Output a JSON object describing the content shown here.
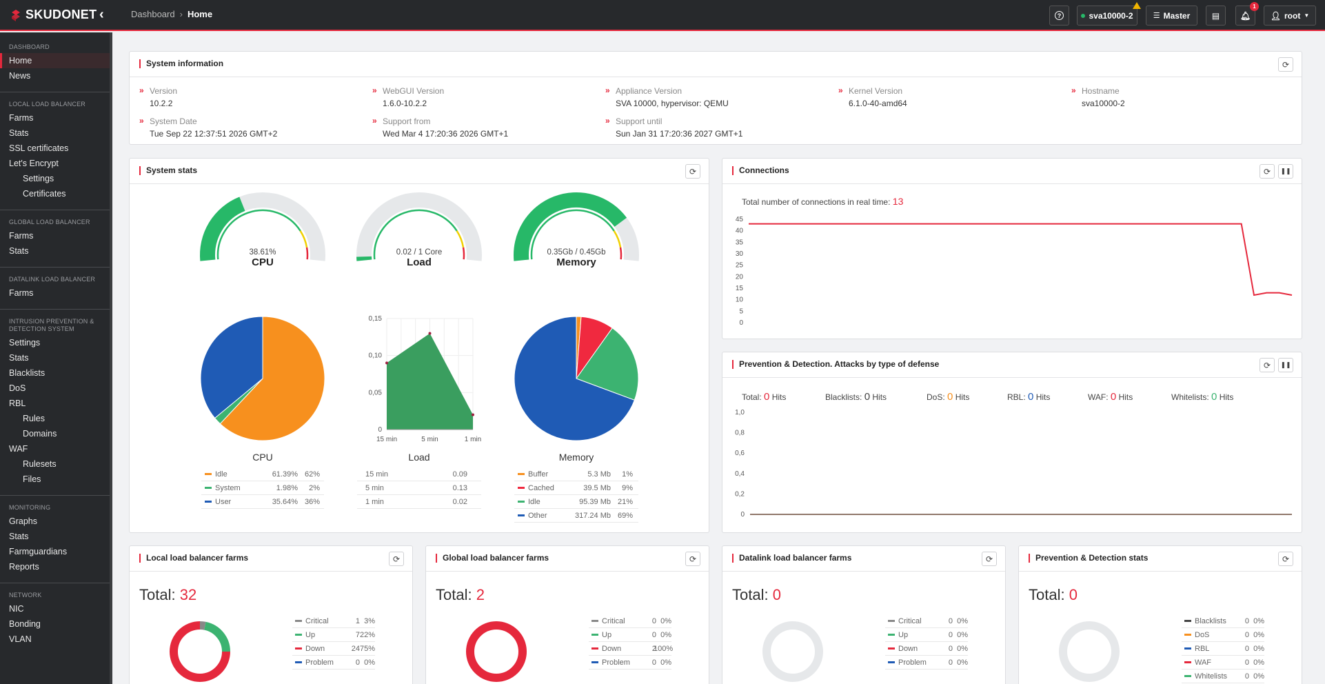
{
  "brand": {
    "name": "SKUDONET",
    "accent": "#e5283c"
  },
  "breadcrumb": {
    "parent": "Dashboard",
    "current": "Home"
  },
  "topbar": {
    "host": "sva10000-2",
    "role": "Master",
    "notifications": "1",
    "user": "root"
  },
  "sidebar": [
    {
      "section": "Dashboard",
      "items": [
        {
          "label": "Home",
          "active": true
        },
        {
          "label": "News"
        }
      ]
    },
    {
      "section": "Local load balancer",
      "items": [
        {
          "label": "Farms"
        },
        {
          "label": "Stats"
        },
        {
          "label": "SSL certificates"
        },
        {
          "label": "Let's Encrypt"
        },
        {
          "label": "Settings",
          "sub": true
        },
        {
          "label": "Certificates",
          "sub": true
        }
      ]
    },
    {
      "section": "Global load balancer",
      "items": [
        {
          "label": "Farms"
        },
        {
          "label": "Stats"
        }
      ]
    },
    {
      "section": "Datalink load balancer",
      "items": [
        {
          "label": "Farms"
        }
      ]
    },
    {
      "section": "Intrusion prevention & detection system",
      "items": [
        {
          "label": "Settings"
        },
        {
          "label": "Stats"
        },
        {
          "label": "Blacklists"
        },
        {
          "label": "DoS"
        },
        {
          "label": "RBL"
        },
        {
          "label": "Rules",
          "sub": true
        },
        {
          "label": "Domains",
          "sub": true
        },
        {
          "label": "WAF"
        },
        {
          "label": "Rulesets",
          "sub": true
        },
        {
          "label": "Files",
          "sub": true
        }
      ]
    },
    {
      "section": "Monitoring",
      "items": [
        {
          "label": "Graphs"
        },
        {
          "label": "Stats"
        },
        {
          "label": "Farmguardians"
        },
        {
          "label": "Reports"
        }
      ]
    },
    {
      "section": "Network",
      "items": [
        {
          "label": "NIC"
        },
        {
          "label": "Bonding"
        },
        {
          "label": "VLAN"
        }
      ]
    }
  ],
  "sysinfo": {
    "title": "System information",
    "fields": [
      {
        "k": "Version",
        "v": "10.2.2"
      },
      {
        "k": "WebGUI Version",
        "v": "1.6.0-10.2.2"
      },
      {
        "k": "Appliance Version",
        "v": "SVA 10000, hypervisor: QEMU"
      },
      {
        "k": "Kernel Version",
        "v": "6.1.0-40-amd64"
      },
      {
        "k": "Hostname",
        "v": "sva10000-2"
      },
      {
        "k": "System Date",
        "v": "Tue Sep 22 12:37:51 2026 GMT+2"
      },
      {
        "k": "Support from",
        "v": "Wed Mar 4 17:20:36 2026 GMT+1"
      },
      {
        "k": "Support until",
        "v": "Sun Jan 31 17:20:36 2027 GMT+1"
      }
    ]
  },
  "stats": {
    "title": "System stats",
    "gauges": [
      {
        "value": "38.61%",
        "name": "CPU",
        "fraction": 0.3861
      },
      {
        "value": "0.02 / 1 Core",
        "name": "Load",
        "fraction": 0.02
      },
      {
        "value": "0.35Gb / 0.45Gb",
        "name": "Memory",
        "fraction": 0.78
      }
    ],
    "cpu": {
      "caption": "CPU",
      "rows": [
        {
          "label": "Idle",
          "val": "61.39%",
          "pct": "62%",
          "color": "#f7901e",
          "frac": 0.6139
        },
        {
          "label": "System",
          "val": "1.98%",
          "pct": "2%",
          "color": "#3cb371",
          "frac": 0.0198
        },
        {
          "label": "User",
          "val": "35.64%",
          "pct": "36%",
          "color": "#1f5bb5",
          "frac": 0.3564
        }
      ]
    },
    "load": {
      "caption": "Load",
      "rows": [
        {
          "label": "15 min",
          "val": "0.09"
        },
        {
          "label": "5 min",
          "val": "0.13"
        },
        {
          "label": "1 min",
          "val": "0.02"
        }
      ]
    },
    "memory": {
      "caption": "Memory",
      "rows": [
        {
          "label": "Buffer",
          "val": "5.3 Mb",
          "pct": "1%",
          "color": "#f7901e",
          "frac": 0.0124
        },
        {
          "label": "Cached",
          "val": "39.5 Mb",
          "pct": "9%",
          "color": "#f0293f",
          "frac": 0.0862
        },
        {
          "label": "Idle",
          "val": "95.39 Mb",
          "pct": "21%",
          "color": "#3cb371",
          "frac": 0.208
        },
        {
          "label": "Other",
          "val": "317.24 Mb",
          "pct": "69%",
          "color": "#1f5bb5",
          "frac": 0.6934
        }
      ]
    }
  },
  "connections": {
    "title": "Connections",
    "label": "Total number of connections in real time:",
    "value": "13"
  },
  "ids": {
    "title": "Prevention & Detection. Attacks by type of defense",
    "hits": [
      {
        "label": "Total:",
        "val": "0",
        "color": "#e5283c"
      },
      {
        "label": "Blacklists:",
        "val": "0",
        "color": "#444"
      },
      {
        "label": "DoS:",
        "val": "0",
        "color": "#f7901e"
      },
      {
        "label": "RBL:",
        "val": "0",
        "color": "#1f5bb5"
      },
      {
        "label": "WAF:",
        "val": "0",
        "color": "#e5283c"
      },
      {
        "label": "Whitelists:",
        "val": "0",
        "color": "#3cb371"
      }
    ],
    "unit": "Hits"
  },
  "farms": [
    {
      "title": "Local load balancer farms",
      "total_label": "Total:",
      "total": "32",
      "rows": [
        {
          "label": "Critical",
          "n": "1",
          "p": "3%",
          "color": "#888"
        },
        {
          "label": "Up",
          "n": "7",
          "p": "22%",
          "color": "#3cb371"
        },
        {
          "label": "Down",
          "n": "24",
          "p": "75%",
          "color": "#e5283c"
        },
        {
          "label": "Problem",
          "n": "0",
          "p": "0%",
          "color": "#1f5bb5"
        }
      ]
    },
    {
      "title": "Global load balancer farms",
      "total_label": "Total:",
      "total": "2",
      "rows": [
        {
          "label": "Critical",
          "n": "0",
          "p": "0%",
          "color": "#888"
        },
        {
          "label": "Up",
          "n": "0",
          "p": "0%",
          "color": "#3cb371"
        },
        {
          "label": "Down",
          "n": "2",
          "p": "100%",
          "color": "#e5283c"
        },
        {
          "label": "Problem",
          "n": "0",
          "p": "0%",
          "color": "#1f5bb5"
        }
      ]
    },
    {
      "title": "Datalink load balancer farms",
      "total_label": "Total:",
      "total": "0",
      "rows": [
        {
          "label": "Critical",
          "n": "0",
          "p": "0%",
          "color": "#888"
        },
        {
          "label": "Up",
          "n": "0",
          "p": "0%",
          "color": "#3cb371"
        },
        {
          "label": "Down",
          "n": "0",
          "p": "0%",
          "color": "#e5283c"
        },
        {
          "label": "Problem",
          "n": "0",
          "p": "0%",
          "color": "#1f5bb5"
        }
      ]
    },
    {
      "title": "Prevention & Detection stats",
      "total_label": "Total:",
      "total": "0",
      "rows": [
        {
          "label": "Blacklists",
          "n": "0",
          "p": "0%",
          "color": "#444"
        },
        {
          "label": "DoS",
          "n": "0",
          "p": "0%",
          "color": "#f7901e"
        },
        {
          "label": "RBL",
          "n": "0",
          "p": "0%",
          "color": "#1f5bb5"
        },
        {
          "label": "WAF",
          "n": "0",
          "p": "0%",
          "color": "#e5283c"
        },
        {
          "label": "Whitelists",
          "n": "0",
          "p": "0%",
          "color": "#3cb371"
        }
      ]
    }
  ],
  "chart_data": [
    {
      "type": "pie",
      "title": "CPU",
      "categories": [
        "Idle",
        "System",
        "User"
      ],
      "values": [
        61.39,
        1.98,
        35.64
      ]
    },
    {
      "type": "area",
      "title": "Load",
      "x": [
        "15 min",
        "5 min",
        "1 min"
      ],
      "values": [
        0.09,
        0.13,
        0.02
      ],
      "ylim": [
        0,
        0.15
      ],
      "yticks": [
        "0",
        "0,05",
        "0,10",
        "0,15"
      ]
    },
    {
      "type": "pie",
      "title": "Memory",
      "categories": [
        "Buffer",
        "Cached",
        "Idle",
        "Other"
      ],
      "values": [
        5.3,
        39.5,
        95.39,
        317.24
      ]
    },
    {
      "type": "line",
      "title": "Connections",
      "values": [
        43,
        43,
        43,
        43,
        43,
        43,
        43,
        43,
        43,
        43,
        43,
        43,
        43,
        43,
        43,
        43,
        43,
        43,
        43,
        43,
        43,
        43,
        43,
        43,
        43,
        43,
        43,
        43,
        43,
        43,
        43,
        43,
        43,
        43,
        43,
        43,
        43,
        43,
        43,
        43,
        12,
        13,
        13,
        12
      ],
      "ylim": [
        0,
        45
      ],
      "yticks": [
        "0",
        "5",
        "10",
        "15",
        "20",
        "25",
        "30",
        "35",
        "40",
        "45"
      ]
    },
    {
      "type": "line",
      "title": "Prevention & Detection. Attacks by type of defense",
      "values": [
        0,
        0
      ],
      "ylim": [
        0,
        1
      ],
      "yticks": [
        "0",
        "0,2",
        "0,4",
        "0,6",
        "0,8",
        "1,0"
      ]
    }
  ]
}
